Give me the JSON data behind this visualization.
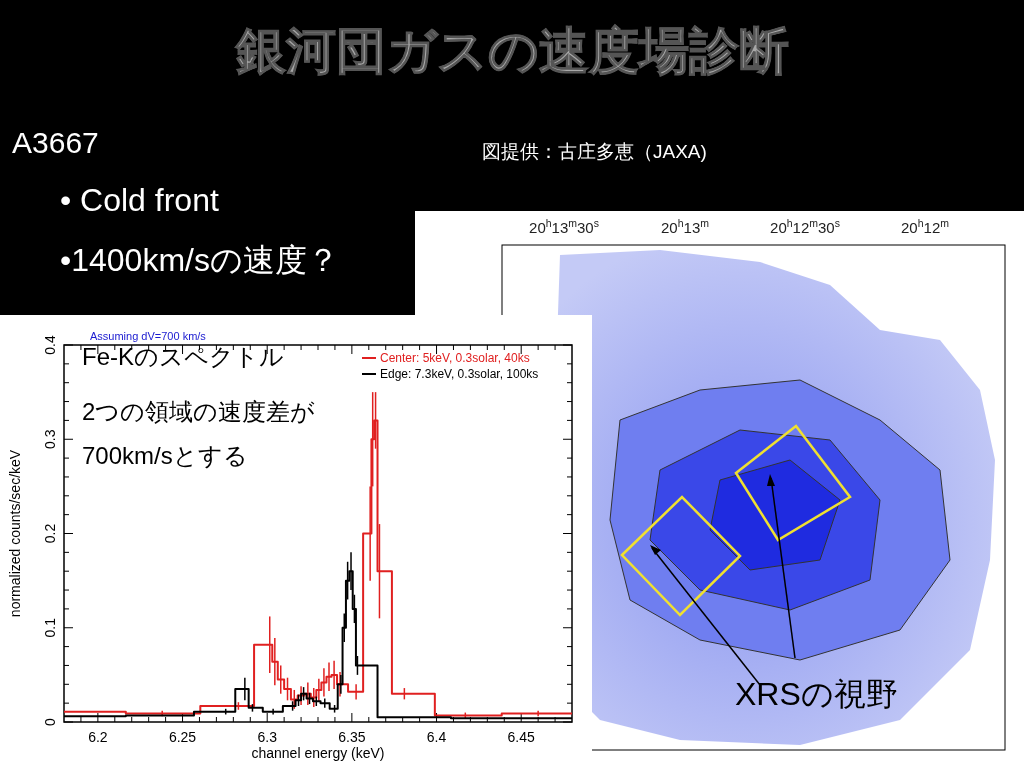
{
  "chart_data": {
    "type": "step",
    "title": "銀河団ガスの速度場診断",
    "xlabel": "channel energy (keV)",
    "ylabel": "normalized counts/sec/keV",
    "xlim": [
      6.18,
      6.48
    ],
    "ylim": [
      0,
      0.4
    ],
    "xticks": [
      {
        "value": 6.19,
        "label": null
      },
      6.2,
      {
        "value": 6.21,
        "label": null
      },
      {
        "value": 6.22,
        "label": null
      },
      {
        "value": 6.23,
        "label": null
      },
      {
        "value": 6.24,
        "label": null
      },
      6.25,
      {
        "value": 6.26,
        "label": null
      },
      {
        "value": 6.27,
        "label": null
      },
      {
        "value": 6.28,
        "label": null
      },
      {
        "value": 6.29,
        "label": null
      },
      6.3,
      {
        "value": 6.31,
        "label": null
      },
      {
        "value": 6.32,
        "label": null
      },
      {
        "value": 6.33,
        "label": null
      },
      {
        "value": 6.34,
        "label": null
      },
      6.35,
      {
        "value": 6.36,
        "label": null
      },
      {
        "value": 6.37,
        "label": null
      },
      {
        "value": 6.38,
        "label": null
      },
      {
        "value": 6.39,
        "label": null
      },
      6.4,
      {
        "value": 6.41,
        "label": null
      },
      {
        "value": 6.42,
        "label": null
      },
      {
        "value": 6.43,
        "label": null
      },
      {
        "value": 6.44,
        "label": null
      },
      6.45,
      {
        "value": 6.46,
        "label": null
      },
      {
        "value": 6.47,
        "label": null
      }
    ],
    "yticks": [
      0,
      {
        "value": 0.02,
        "label": null
      },
      {
        "value": 0.04,
        "label": null
      },
      {
        "value": 0.06,
        "label": null
      },
      {
        "value": 0.08,
        "label": null
      },
      0.1,
      {
        "value": 0.12,
        "label": null
      },
      {
        "value": 0.14,
        "label": null
      },
      {
        "value": 0.16,
        "label": null
      },
      {
        "value": 0.18,
        "label": null
      },
      0.2,
      {
        "value": 0.22,
        "label": null
      },
      {
        "value": 0.24,
        "label": null
      },
      {
        "value": 0.26,
        "label": null
      },
      {
        "value": 0.28,
        "label": null
      },
      0.3,
      {
        "value": 0.32,
        "label": null
      },
      {
        "value": 0.34,
        "label": null
      },
      {
        "value": 0.36,
        "label": null
      },
      {
        "value": 0.38,
        "label": null
      },
      0.4
    ],
    "grid": false,
    "legend": "top right",
    "series": [
      {
        "name": "Center: 5keV, 0.3solar, 40ks",
        "color": "#e02020",
        "x": [
          6.18,
          6.195,
          6.238,
          6.283,
          6.3015,
          6.3045,
          6.308,
          6.312,
          6.316,
          6.32,
          6.324,
          6.3275,
          6.3305,
          6.3335,
          6.3365,
          6.3395,
          6.343,
          6.3525,
          6.3608,
          6.3623,
          6.364,
          6.3663,
          6.381,
          6.417,
          6.46,
          6.48
        ],
        "values": [
          0.011,
          0.011,
          0.009,
          0.017,
          0.082,
          0.064,
          0.045,
          0.035,
          0.024,
          0.028,
          0.03,
          0.026,
          0.034,
          0.042,
          0.048,
          0.05,
          0.04,
          0.032,
          0.2,
          0.3,
          0.32,
          0.16,
          0.03,
          0.007,
          0.009,
          0.009
        ],
        "errors": [
          null,
          null,
          0.003,
          0.004,
          0.03,
          0.025,
          0.015,
          0.012,
          0.01,
          0.01,
          0.012,
          0.01,
          0.012,
          0.015,
          0.015,
          0.015,
          0.013,
          0.008,
          0.05,
          0.05,
          0.03,
          0.05,
          0.006,
          0.003,
          0.003,
          null
        ]
      },
      {
        "name": "Edge: 7.3keV, 0.3solar, 100ks",
        "color": "#000000",
        "x": [
          6.18,
          6.195,
          6.238,
          6.2755,
          6.2868,
          6.2913,
          6.3035,
          6.315,
          6.3185,
          6.3215,
          6.325,
          6.329,
          6.334,
          6.3398,
          6.3435,
          6.3455,
          6.3475,
          6.3495,
          6.3515,
          6.3533,
          6.377,
          6.44,
          6.48
        ],
        "values": [
          0.006,
          0.006,
          0.007,
          0.011,
          0.035,
          0.015,
          0.011,
          0.017,
          0.023,
          0.03,
          0.025,
          0.022,
          0.02,
          0.014,
          0.04,
          0.1,
          0.15,
          0.16,
          0.12,
          0.06,
          0.005,
          0.004,
          0.004
        ],
        "errors": [
          null,
          null,
          null,
          0.003,
          0.012,
          0.004,
          0.003,
          0.005,
          0.006,
          0.007,
          0.006,
          0.005,
          0.005,
          0.004,
          0.01,
          0.015,
          0.02,
          0.02,
          0.015,
          0.01,
          null,
          null,
          null
        ]
      }
    ],
    "annotations": [
      "A3667",
      "• Cold front",
      "•1400km/sの速度？",
      "図提供：古庄多恵（JAXA)",
      "Assuming dV=700 km/s",
      "Fe-Kのスペクトル",
      "2つの領域の速度差が",
      "700km/sとする",
      "20$^{h}$13$^{m}$30$^{s}$",
      "20$^{h}$13$^{m}$",
      "20$^{h}$12$^{m}$30$^{s}$",
      "20$^{h}$12$^{m}$",
      "XRSの視野"
    ]
  }
}
